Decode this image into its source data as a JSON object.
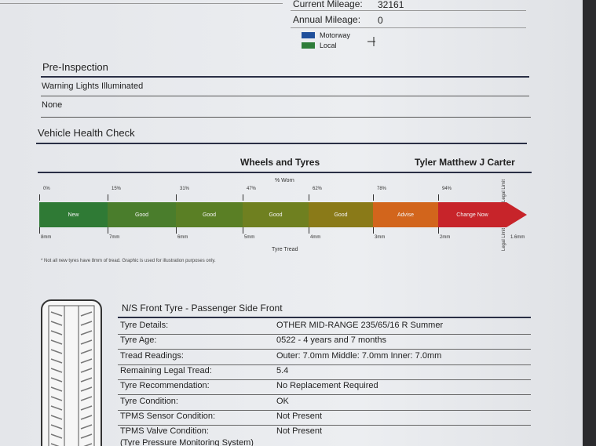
{
  "mileage": {
    "current_label": "Current Mileage:",
    "current_value": 32161,
    "annual_label": "Annual Mileage:",
    "annual_value": 0,
    "legend": [
      "Motorway",
      "Local"
    ]
  },
  "pre_inspection": {
    "title": "Pre-Inspection",
    "rows": [
      "Warning Lights Illuminated",
      "None"
    ]
  },
  "health_check": {
    "title": "Vehicle Health Check",
    "section": "Wheels and Tyres",
    "customer": "Tyler Matthew J Carter"
  },
  "tread_gauge": {
    "worn_label": "% Worn",
    "worn": [
      "0%",
      "15%",
      "31%",
      "47%",
      "62%",
      "78%",
      "94%"
    ],
    "segments": [
      "New",
      "Good",
      "Good",
      "Good",
      "Good",
      "Advise",
      "Change Now"
    ],
    "depths": [
      "8mm",
      "7mm",
      "6mm",
      "5mm",
      "4mm",
      "3mm",
      "2mm",
      "1.6mm"
    ],
    "depth_label": "Tyre Tread",
    "legal_limit": [
      "Legal Limit",
      "Legal Limit"
    ],
    "note": "* Not all new tyres have 8mm of tread. Graphic is used for illustration purposes only."
  },
  "tyre": {
    "title": "N/S Front Tyre - Passenger Side Front",
    "rows": [
      [
        "Tyre Details:",
        "OTHER MID-RANGE 235/65/16 R  Summer"
      ],
      [
        "Tyre Age:",
        "0522 - 4 years and 7 months"
      ],
      [
        "Tread Readings:",
        "Outer: 7.0mm Middle: 7.0mm Inner: 7.0mm"
      ],
      [
        "Remaining Legal Tread:",
        "5.4"
      ],
      [
        "Tyre Recommendation:",
        "No Replacement Required"
      ],
      [
        "Tyre Condition:",
        "OK"
      ],
      [
        "TPMS Sensor Condition:",
        "Not Present"
      ],
      [
        "TPMS Valve Condition:",
        "Not Present"
      ]
    ],
    "subnote": "(Tyre Pressure Monitoring System)"
  }
}
